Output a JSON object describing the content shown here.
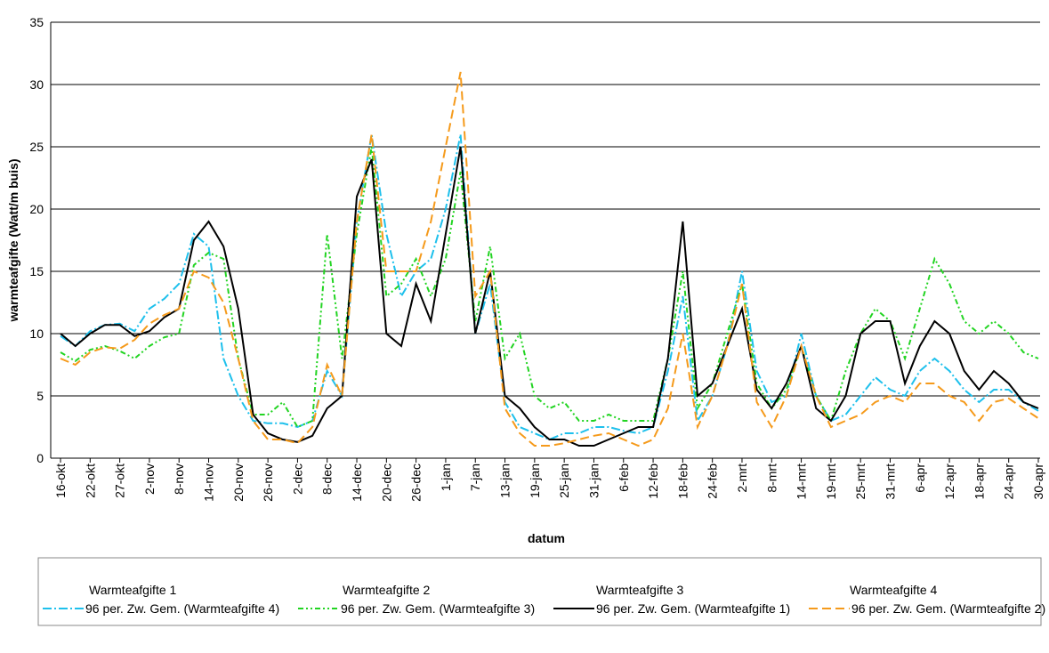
{
  "chart_data": {
    "type": "line",
    "y_label": "warmteafgifte (Watt/m buis)",
    "x_label": "datum",
    "categories": [
      "16-okt",
      null,
      "22-okt",
      null,
      "27-okt",
      null,
      "2-nov",
      null,
      "8-nov",
      null,
      "14-nov",
      null,
      "20-nov",
      null,
      "26-nov",
      null,
      "2-dec",
      null,
      "8-dec",
      null,
      "14-dec",
      null,
      "20-dec",
      null,
      "26-dec",
      null,
      "1-jan",
      null,
      "7-jan",
      null,
      "13-jan",
      null,
      "19-jan",
      null,
      "25-jan",
      null,
      "31-jan",
      null,
      "6-feb",
      null,
      "12-feb",
      null,
      "18-feb",
      null,
      "24-feb",
      null,
      "2-mrt",
      null,
      "8-mrt",
      null,
      "14-mrt",
      null,
      "19-mrt",
      null,
      "25-mrt",
      null,
      "31-mrt",
      null,
      "6-apr",
      null,
      "12-apr",
      null,
      "18-apr",
      null,
      "24-apr",
      null,
      "30-apr"
    ],
    "legend_texts": [
      "Warmteafgifte 1",
      "Warmteafgifte 2",
      "Warmteafgifte 3",
      "Warmteafgifte 4"
    ],
    "series": [
      {
        "name": "96 per. Zw. Gem. (Warmteafgifte 4)",
        "color": "#1ec0ec",
        "dash": "10,3,2,3",
        "values": [
          9.8,
          9,
          10.2,
          10.7,
          10.8,
          10.2,
          12,
          12.8,
          14,
          18,
          17,
          8,
          5,
          3,
          2.8,
          2.8,
          2.5,
          3,
          7,
          5,
          19,
          26,
          18,
          13,
          15,
          16,
          20,
          26,
          10,
          14,
          4.5,
          2.5,
          2,
          1.5,
          2,
          2,
          2.5,
          2.5,
          2.2,
          2,
          2.5,
          7,
          13,
          3,
          5,
          9,
          15,
          7,
          4.5,
          5,
          10,
          5,
          3,
          3.5,
          5,
          6.5,
          5.5,
          5,
          7,
          8,
          7,
          5.5,
          4.5,
          5.5,
          5.5,
          4.5,
          3.8
        ]
      },
      {
        "name": "96 per. Zw. Gem. (Warmteafgifte 3)",
        "color": "#22d422",
        "dash": "6,3,2,3,2,3",
        "values": [
          8.5,
          7.8,
          8.7,
          9,
          8.6,
          8,
          9,
          9.7,
          10,
          15.5,
          16.5,
          16,
          8,
          3.5,
          3.5,
          4.5,
          2.5,
          3,
          18,
          8,
          18,
          25,
          13,
          14,
          16,
          13,
          16,
          23,
          11,
          17,
          8,
          10,
          5,
          4,
          4.5,
          3,
          3,
          3.5,
          3,
          3,
          3,
          8,
          15,
          4,
          6,
          10,
          14,
          6,
          4,
          5.5,
          9,
          5,
          3,
          7,
          10,
          12,
          11,
          8,
          12,
          16,
          14,
          11,
          10,
          11,
          10,
          8.5,
          8
        ]
      },
      {
        "name": "96 per. Zw. Gem. (Warmteafgifte 1)",
        "color": "#000000",
        "dash": "",
        "values": [
          10,
          9,
          10,
          10.7,
          10.7,
          9.8,
          10.2,
          11.3,
          12,
          17.5,
          19,
          17,
          12,
          3.5,
          2,
          1.5,
          1.3,
          1.8,
          4,
          5,
          21,
          24,
          10,
          9,
          14,
          11,
          18,
          25,
          10,
          15,
          5,
          4,
          2.5,
          1.5,
          1.5,
          1,
          1,
          1.5,
          2,
          2.5,
          2.5,
          8,
          19,
          5,
          6,
          9,
          12,
          5.5,
          4,
          6,
          9,
          4,
          3,
          5,
          10,
          11,
          11,
          6,
          9,
          11,
          10,
          7,
          5.5,
          7,
          6,
          4.5,
          4
        ]
      },
      {
        "name": "96 per. Zw. Gem. (Warmteafgifte 2)",
        "color": "#f59a1b",
        "dash": "10,5",
        "values": [
          8,
          7.5,
          8.5,
          8.9,
          8.8,
          9.5,
          10.8,
          11.5,
          12,
          15,
          14.5,
          12.5,
          8,
          3,
          1.5,
          1.5,
          1.2,
          2.5,
          7.5,
          5,
          19,
          26,
          15,
          15,
          15,
          19,
          25,
          31,
          13,
          15,
          4,
          2,
          1,
          1,
          1.2,
          1.5,
          1.8,
          2,
          1.5,
          1,
          1.5,
          4,
          10,
          2.5,
          5,
          9,
          14,
          4.5,
          2.5,
          5,
          9,
          5,
          2.5,
          3,
          3.5,
          4.5,
          5,
          4.5,
          6,
          6,
          5,
          4.5,
          3,
          4.5,
          4.8,
          4,
          3.2
        ]
      }
    ],
    "ylim": [
      0,
      35
    ],
    "yticks": [
      0,
      5,
      10,
      15,
      20,
      25,
      30,
      35
    ],
    "grid": true
  }
}
